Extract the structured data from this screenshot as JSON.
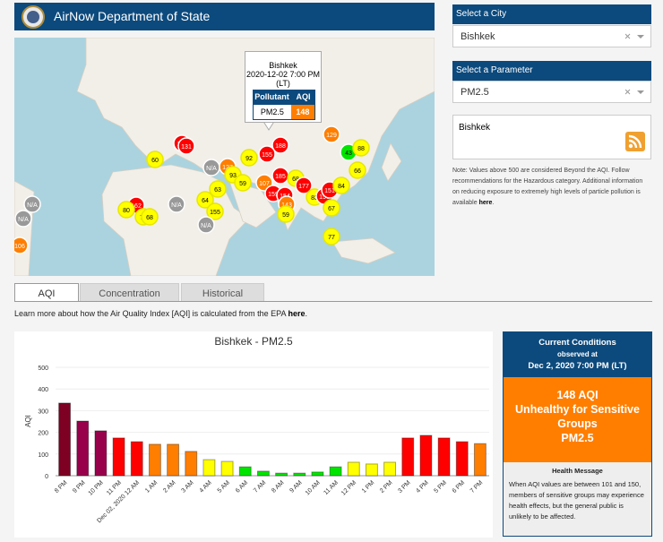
{
  "header": {
    "title": "AirNow Department of State"
  },
  "map": {
    "popup": {
      "city": "Bishkek",
      "datetime": "2020-12-02 7:00 PM",
      "zone": "(LT)",
      "headers": [
        "Pollutant",
        "AQI"
      ],
      "pollutant": "PM2.5",
      "aqi": 148
    },
    "markers": [
      60,
      117,
      131,
      92,
      188,
      155,
      185,
      107,
      159,
      154,
      143,
      59,
      68,
      177,
      83,
      150,
      151,
      67,
      84,
      66,
      43,
      88,
      129,
      77,
      "N/A",
      127,
      93,
      63,
      59,
      64,
      155,
      "N/A",
      "N/A",
      162,
      80,
      78,
      68,
      "N/A",
      "N/A",
      106
    ]
  },
  "tabs": [
    "AQI",
    "Concentration",
    "Historical"
  ],
  "learn_more": {
    "text": "Learn more about how the Air Quality Index [AQI] is calculated from the EPA ",
    "link": "here",
    "end": "."
  },
  "city_select": {
    "label": "Select a City",
    "value": "Bishkek"
  },
  "parameter_select": {
    "label": "Select a Parameter",
    "value": "PM2.5"
  },
  "feed": {
    "title": "Bishkek"
  },
  "note": {
    "text": "Note: Values above 500 are considered Beyond the AQI. Follow recommendations for the Hazardous category. Additional information on reducing exposure to extremely high levels of particle pollution is available ",
    "link": "here",
    "end": "."
  },
  "current": {
    "title": "Current Conditions",
    "observed": "observed at",
    "datetime": "Dec 2, 2020 7:00 PM (LT)",
    "aqi": "148 AQI",
    "category": "Unhealthy for Sensitive Groups",
    "pollutant": "PM2.5",
    "health_title": "Health Message",
    "health_text": "When AQI values are between 101 and 150, members of sensitive groups may experience health effects, but the general public is unlikely to be affected."
  },
  "chart_data": {
    "type": "bar",
    "title": "Bishkek - PM2.5",
    "y_label": "AQI",
    "categories": [
      "8 PM",
      "9 PM",
      "10 PM",
      "11 PM",
      "Dec 02, 2020 12 AM",
      "1 AM",
      "2 AM",
      "3 AM",
      "4 AM",
      "5 AM",
      "6 AM",
      "7 AM",
      "8 AM",
      "9 AM",
      "10 AM",
      "11 AM",
      "12 PM",
      "1 PM",
      "2 PM",
      "3 PM",
      "4 PM",
      "5 PM",
      "6 PM",
      "7 PM"
    ],
    "values": [
      335,
      252,
      207,
      174,
      157,
      145,
      145,
      112,
      74,
      66,
      41,
      21,
      12,
      12,
      17,
      41,
      62,
      54,
      62,
      174,
      186,
      174,
      157,
      148
    ],
    "colors": [
      "#7e0023",
      "#99004c",
      "#99004c",
      "#ff0000",
      "#ff0000",
      "#ff7e00",
      "#ff7e00",
      "#ff7e00",
      "#ffff00",
      "#ffff00",
      "#00e400",
      "#00e400",
      "#00e400",
      "#00e400",
      "#00e400",
      "#00e400",
      "#ffff00",
      "#ffff00",
      "#ffff00",
      "#ff0000",
      "#ff0000",
      "#ff0000",
      "#ff0000",
      "#ff7e00"
    ],
    "ylim": [
      0,
      500
    ],
    "yticks": [
      0,
      100,
      200,
      300,
      400,
      500
    ],
    "grid": true
  }
}
